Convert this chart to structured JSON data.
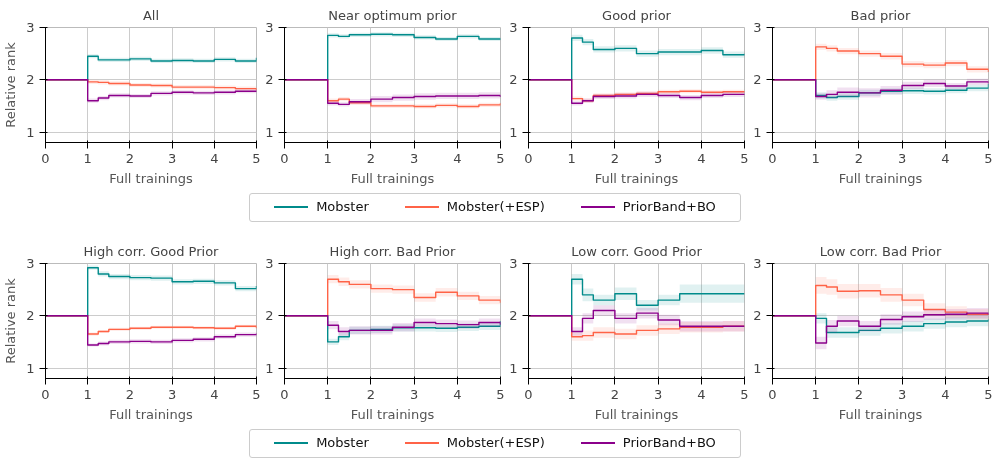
{
  "chart_data": [
    {
      "type": "step",
      "title": "All",
      "xlabel": "Full trainings",
      "ylabel": "Relative rank",
      "xlim": [
        0,
        5
      ],
      "xticks": [
        0,
        1,
        2,
        3,
        4,
        5
      ],
      "ylim": [
        0.8,
        3
      ],
      "yticks": [
        1,
        2,
        3
      ],
      "grid": true,
      "x": [
        0,
        1,
        1.25,
        1.5,
        2,
        2.5,
        3,
        3.5,
        4,
        4.5,
        5
      ],
      "series": [
        {
          "color": "#008b8b",
          "values": [
            2,
            2.45,
            2.38,
            2.38,
            2.4,
            2.36,
            2.37,
            2.36,
            2.39,
            2.36,
            2.42
          ],
          "lower": [
            2,
            2.41,
            2.34,
            2.34,
            2.36,
            2.32,
            2.33,
            2.32,
            2.35,
            2.32,
            2.38
          ],
          "upper": [
            2,
            2.49,
            2.42,
            2.42,
            2.44,
            2.4,
            2.41,
            2.4,
            2.43,
            2.4,
            2.46
          ]
        },
        {
          "color": "#ff6347",
          "values": [
            2,
            1.96,
            1.95,
            1.93,
            1.9,
            1.89,
            1.86,
            1.86,
            1.85,
            1.83,
            1.8
          ],
          "lower": [
            2,
            1.92,
            1.91,
            1.89,
            1.86,
            1.85,
            1.82,
            1.82,
            1.81,
            1.79,
            1.76
          ],
          "upper": [
            2,
            2,
            1.99,
            1.97,
            1.94,
            1.93,
            1.9,
            1.9,
            1.89,
            1.87,
            1.84
          ]
        },
        {
          "color": "#8b008b",
          "values": [
            2,
            1.6,
            1.65,
            1.7,
            1.69,
            1.74,
            1.76,
            1.75,
            1.76,
            1.78,
            1.77
          ],
          "lower": [
            2,
            1.56,
            1.61,
            1.66,
            1.65,
            1.7,
            1.72,
            1.71,
            1.72,
            1.74,
            1.73
          ],
          "upper": [
            2,
            1.64,
            1.69,
            1.74,
            1.73,
            1.78,
            1.8,
            1.79,
            1.8,
            1.82,
            1.81
          ]
        }
      ]
    },
    {
      "type": "step",
      "title": "Near optimum prior",
      "xlabel": "Full trainings",
      "xlim": [
        0,
        5
      ],
      "xticks": [
        0,
        1,
        2,
        3,
        4,
        5
      ],
      "ylim": [
        0.8,
        3
      ],
      "yticks": [
        1,
        2,
        3
      ],
      "grid": true,
      "legend": "bottom",
      "x": [
        0,
        1,
        1.25,
        1.5,
        2,
        2.5,
        3,
        3.5,
        4,
        4.5,
        5
      ],
      "series": [
        {
          "name": "Mobster",
          "color": "#008b8b",
          "values": [
            2,
            2.85,
            2.83,
            2.86,
            2.87,
            2.86,
            2.81,
            2.78,
            2.83,
            2.78,
            2.79
          ],
          "lower": [
            2,
            2.81,
            2.79,
            2.82,
            2.83,
            2.82,
            2.77,
            2.74,
            2.79,
            2.74,
            2.75
          ],
          "upper": [
            2,
            2.89,
            2.87,
            2.9,
            2.91,
            2.9,
            2.85,
            2.82,
            2.87,
            2.82,
            2.83
          ]
        },
        {
          "name": "Mobster(+ESP)",
          "color": "#ff6347",
          "values": [
            2,
            1.6,
            1.63,
            1.56,
            1.5,
            1.5,
            1.49,
            1.51,
            1.49,
            1.52,
            1.55
          ],
          "lower": [
            2,
            1.56,
            1.59,
            1.52,
            1.46,
            1.46,
            1.45,
            1.47,
            1.45,
            1.48,
            1.51
          ],
          "upper": [
            2,
            1.64,
            1.67,
            1.6,
            1.54,
            1.54,
            1.53,
            1.55,
            1.53,
            1.56,
            1.59
          ]
        },
        {
          "name": "PriorBand+BO",
          "color": "#8b008b",
          "values": [
            2,
            1.55,
            1.53,
            1.58,
            1.63,
            1.66,
            1.68,
            1.69,
            1.69,
            1.7,
            1.67
          ],
          "lower": [
            2,
            1.51,
            1.49,
            1.53,
            1.57,
            1.6,
            1.62,
            1.63,
            1.63,
            1.64,
            1.61
          ],
          "upper": [
            2,
            1.59,
            1.57,
            1.63,
            1.69,
            1.72,
            1.74,
            1.75,
            1.75,
            1.76,
            1.73
          ]
        }
      ]
    },
    {
      "type": "step",
      "title": "Good prior",
      "xlabel": "Full trainings",
      "xlim": [
        0,
        5
      ],
      "xticks": [
        0,
        1,
        2,
        3,
        4,
        5
      ],
      "ylim": [
        0.8,
        3
      ],
      "yticks": [
        1,
        2,
        3
      ],
      "grid": true,
      "x": [
        0,
        1,
        1.25,
        1.5,
        2,
        2.5,
        3,
        3.5,
        4,
        4.5,
        5
      ],
      "series": [
        {
          "color": "#008b8b",
          "values": [
            2,
            2.8,
            2.72,
            2.58,
            2.6,
            2.5,
            2.53,
            2.53,
            2.56,
            2.48,
            2.5
          ],
          "lower": [
            2,
            2.74,
            2.66,
            2.52,
            2.54,
            2.44,
            2.47,
            2.47,
            2.5,
            2.42,
            2.44
          ],
          "upper": [
            2,
            2.86,
            2.78,
            2.64,
            2.66,
            2.56,
            2.59,
            2.59,
            2.62,
            2.54,
            2.56
          ]
        },
        {
          "color": "#ff6347",
          "values": [
            2,
            1.64,
            1.6,
            1.7,
            1.72,
            1.74,
            1.77,
            1.78,
            1.76,
            1.77,
            1.76
          ],
          "lower": [
            2,
            1.6,
            1.56,
            1.66,
            1.68,
            1.7,
            1.73,
            1.74,
            1.72,
            1.73,
            1.72
          ],
          "upper": [
            2,
            1.68,
            1.64,
            1.74,
            1.76,
            1.78,
            1.81,
            1.82,
            1.8,
            1.81,
            1.8
          ]
        },
        {
          "color": "#8b008b",
          "values": [
            2,
            1.55,
            1.6,
            1.68,
            1.69,
            1.72,
            1.7,
            1.66,
            1.7,
            1.72,
            1.73
          ],
          "lower": [
            2,
            1.51,
            1.56,
            1.63,
            1.64,
            1.67,
            1.65,
            1.61,
            1.65,
            1.67,
            1.68
          ],
          "upper": [
            2,
            1.59,
            1.64,
            1.73,
            1.74,
            1.77,
            1.75,
            1.71,
            1.75,
            1.77,
            1.78
          ]
        }
      ]
    },
    {
      "type": "step",
      "title": "Bad prior",
      "xlabel": "Full trainings",
      "xlim": [
        0,
        5
      ],
      "xticks": [
        0,
        1,
        2,
        3,
        4,
        5
      ],
      "ylim": [
        0.8,
        3
      ],
      "yticks": [
        1,
        2,
        3
      ],
      "grid": true,
      "x": [
        0,
        1,
        1.25,
        1.5,
        2,
        2.5,
        3,
        3.5,
        4,
        4.5,
        5
      ],
      "series": [
        {
          "color": "#008b8b",
          "values": [
            2,
            1.7,
            1.66,
            1.68,
            1.75,
            1.78,
            1.79,
            1.78,
            1.8,
            1.84,
            1.92
          ],
          "lower": [
            2,
            1.64,
            1.6,
            1.62,
            1.69,
            1.72,
            1.73,
            1.72,
            1.74,
            1.78,
            1.86
          ],
          "upper": [
            2,
            1.76,
            1.72,
            1.74,
            1.81,
            1.84,
            1.85,
            1.84,
            1.86,
            1.9,
            1.98
          ]
        },
        {
          "color": "#ff6347",
          "values": [
            2,
            2.63,
            2.6,
            2.55,
            2.5,
            2.45,
            2.3,
            2.28,
            2.32,
            2.2,
            2.15
          ],
          "lower": [
            2,
            2.57,
            2.54,
            2.49,
            2.44,
            2.39,
            2.24,
            2.22,
            2.26,
            2.14,
            2.09
          ],
          "upper": [
            2,
            2.69,
            2.66,
            2.61,
            2.56,
            2.51,
            2.36,
            2.34,
            2.38,
            2.26,
            2.21
          ]
        },
        {
          "color": "#8b008b",
          "values": [
            2,
            1.68,
            1.72,
            1.76,
            1.75,
            1.8,
            1.89,
            1.93,
            1.88,
            1.96,
            1.93
          ],
          "lower": [
            2,
            1.62,
            1.64,
            1.67,
            1.66,
            1.72,
            1.82,
            1.86,
            1.82,
            1.9,
            1.87
          ],
          "upper": [
            2,
            1.74,
            1.8,
            1.85,
            1.84,
            1.88,
            1.96,
            2,
            1.94,
            2.02,
            1.99
          ]
        }
      ]
    },
    {
      "type": "step",
      "title": "High corr. Good Prior",
      "xlabel": "Full trainings",
      "ylabel": "Relative rank",
      "xlim": [
        0,
        5
      ],
      "xticks": [
        0,
        1,
        2,
        3,
        4,
        5
      ],
      "ylim": [
        0.8,
        3
      ],
      "yticks": [
        1,
        2,
        3
      ],
      "grid": true,
      "x": [
        0,
        1,
        1.25,
        1.5,
        2,
        2.5,
        3,
        3.5,
        4,
        4.5,
        5
      ],
      "series": [
        {
          "color": "#008b8b",
          "values": [
            2,
            2.92,
            2.8,
            2.75,
            2.73,
            2.72,
            2.65,
            2.66,
            2.63,
            2.52,
            2.57
          ],
          "lower": [
            2,
            2.88,
            2.75,
            2.7,
            2.68,
            2.67,
            2.6,
            2.61,
            2.58,
            2.47,
            2.52
          ],
          "upper": [
            2,
            2.96,
            2.85,
            2.8,
            2.78,
            2.77,
            2.7,
            2.71,
            2.68,
            2.57,
            2.62
          ]
        },
        {
          "color": "#ff6347",
          "values": [
            2,
            1.65,
            1.7,
            1.74,
            1.76,
            1.78,
            1.78,
            1.77,
            1.76,
            1.8,
            1.76
          ],
          "lower": [
            2,
            1.62,
            1.67,
            1.71,
            1.73,
            1.75,
            1.75,
            1.74,
            1.73,
            1.77,
            1.73
          ],
          "upper": [
            2,
            1.68,
            1.73,
            1.77,
            1.79,
            1.81,
            1.81,
            1.8,
            1.79,
            1.83,
            1.79
          ]
        },
        {
          "color": "#8b008b",
          "values": [
            2,
            1.44,
            1.47,
            1.5,
            1.51,
            1.5,
            1.53,
            1.55,
            1.6,
            1.64,
            1.66
          ],
          "lower": [
            2,
            1.41,
            1.43,
            1.46,
            1.47,
            1.46,
            1.49,
            1.51,
            1.56,
            1.6,
            1.62
          ],
          "upper": [
            2,
            1.47,
            1.51,
            1.54,
            1.55,
            1.54,
            1.57,
            1.59,
            1.64,
            1.68,
            1.7
          ]
        }
      ]
    },
    {
      "type": "step",
      "title": "High corr. Bad Prior",
      "xlabel": "Full trainings",
      "xlim": [
        0,
        5
      ],
      "xticks": [
        0,
        1,
        2,
        3,
        4,
        5
      ],
      "ylim": [
        0.8,
        3
      ],
      "yticks": [
        1,
        2,
        3
      ],
      "grid": true,
      "legend": "bottom",
      "x": [
        0,
        1,
        1.25,
        1.5,
        2,
        2.5,
        3,
        3.5,
        4,
        4.5,
        5
      ],
      "series": [
        {
          "name": "Mobster",
          "color": "#008b8b",
          "values": [
            2,
            1.5,
            1.6,
            1.72,
            1.74,
            1.77,
            1.77,
            1.76,
            1.78,
            1.8,
            1.9
          ],
          "lower": [
            2,
            1.44,
            1.53,
            1.65,
            1.67,
            1.7,
            1.7,
            1.69,
            1.71,
            1.73,
            1.83
          ],
          "upper": [
            2,
            1.56,
            1.67,
            1.79,
            1.81,
            1.84,
            1.84,
            1.83,
            1.85,
            1.87,
            1.97
          ]
        },
        {
          "name": "Mobster(+ESP)",
          "color": "#ff6347",
          "values": [
            2,
            2.7,
            2.65,
            2.6,
            2.52,
            2.5,
            2.35,
            2.45,
            2.38,
            2.3,
            2.25
          ],
          "lower": [
            2,
            2.62,
            2.57,
            2.52,
            2.44,
            2.42,
            2.27,
            2.37,
            2.3,
            2.22,
            2.18
          ],
          "upper": [
            2,
            2.78,
            2.73,
            2.68,
            2.6,
            2.58,
            2.43,
            2.53,
            2.46,
            2.38,
            2.32
          ]
        },
        {
          "name": "PriorBand+BO",
          "color": "#8b008b",
          "values": [
            2,
            1.82,
            1.7,
            1.72,
            1.72,
            1.78,
            1.87,
            1.85,
            1.83,
            1.87,
            1.83
          ],
          "lower": [
            2,
            1.74,
            1.62,
            1.64,
            1.64,
            1.7,
            1.79,
            1.77,
            1.75,
            1.79,
            1.75
          ],
          "upper": [
            2,
            1.9,
            1.78,
            1.8,
            1.8,
            1.86,
            1.95,
            1.93,
            1.91,
            1.95,
            1.91
          ]
        }
      ]
    },
    {
      "type": "step",
      "title": "Low corr. Good Prior",
      "xlabel": "Full trainings",
      "xlim": [
        0,
        5
      ],
      "xticks": [
        0,
        1,
        2,
        3,
        4,
        5
      ],
      "ylim": [
        0.8,
        3
      ],
      "yticks": [
        1,
        2,
        3
      ],
      "grid": true,
      "x": [
        0,
        1,
        1.25,
        1.5,
        2,
        2.5,
        3,
        3.5,
        4,
        4.5,
        5
      ],
      "series": [
        {
          "color": "#008b8b",
          "values": [
            2,
            2.7,
            2.4,
            2.3,
            2.42,
            2.2,
            2.3,
            2.42,
            2.42,
            2.42,
            2.42
          ],
          "lower": [
            2,
            2.6,
            2.28,
            2.2,
            2.3,
            2.1,
            2.2,
            2.25,
            2.25,
            2.25,
            2.25
          ],
          "upper": [
            2,
            2.8,
            2.52,
            2.4,
            2.54,
            2.3,
            2.4,
            2.6,
            2.6,
            2.6,
            2.6
          ]
        },
        {
          "color": "#ff6347",
          "values": [
            2,
            1.6,
            1.62,
            1.68,
            1.65,
            1.72,
            1.75,
            1.78,
            1.78,
            1.8,
            1.8
          ],
          "lower": [
            2,
            1.52,
            1.52,
            1.58,
            1.55,
            1.62,
            1.65,
            1.68,
            1.68,
            1.7,
            1.7
          ],
          "upper": [
            2,
            1.68,
            1.72,
            1.78,
            1.75,
            1.82,
            1.85,
            1.88,
            1.88,
            1.9,
            1.9
          ]
        },
        {
          "color": "#8b008b",
          "values": [
            2,
            1.7,
            1.95,
            2.1,
            1.95,
            2.05,
            1.92,
            1.8,
            1.8,
            1.8,
            1.8
          ],
          "lower": [
            2,
            1.62,
            1.85,
            2,
            1.85,
            1.95,
            1.82,
            1.7,
            1.7,
            1.7,
            1.7
          ],
          "upper": [
            2,
            1.78,
            2.05,
            2.2,
            2.05,
            2.15,
            2.02,
            1.9,
            1.9,
            1.9,
            1.9
          ]
        }
      ]
    },
    {
      "type": "step",
      "title": "Low corr. Bad Prior",
      "xlabel": "Full trainings",
      "xlim": [
        0,
        5
      ],
      "xticks": [
        0,
        1,
        2,
        3,
        4,
        5
      ],
      "ylim": [
        0.8,
        3
      ],
      "yticks": [
        1,
        2,
        3
      ],
      "grid": true,
      "x": [
        0,
        1,
        1.25,
        1.5,
        2,
        2.5,
        3,
        3.5,
        4,
        4.5,
        5
      ],
      "series": [
        {
          "color": "#008b8b",
          "values": [
            2,
            1.95,
            1.68,
            1.68,
            1.72,
            1.76,
            1.8,
            1.85,
            1.88,
            1.9,
            1.93
          ],
          "lower": [
            2,
            1.85,
            1.58,
            1.58,
            1.62,
            1.66,
            1.7,
            1.75,
            1.78,
            1.8,
            1.83
          ],
          "upper": [
            2,
            2.05,
            1.78,
            1.78,
            1.82,
            1.86,
            1.9,
            1.95,
            1.98,
            2,
            2.03
          ]
        },
        {
          "color": "#ff6347",
          "values": [
            2,
            2.58,
            2.55,
            2.47,
            2.48,
            2.4,
            2.3,
            2.12,
            2.07,
            2.03,
            2.02
          ],
          "lower": [
            2,
            2.42,
            2.4,
            2.33,
            2.35,
            2.27,
            2.18,
            2,
            1.96,
            1.93,
            1.92
          ],
          "upper": [
            2,
            2.74,
            2.7,
            2.61,
            2.61,
            2.53,
            2.42,
            2.24,
            2.18,
            2.13,
            2.12
          ]
        },
        {
          "color": "#8b008b",
          "values": [
            2,
            1.48,
            1.8,
            1.9,
            1.8,
            1.93,
            1.98,
            2.02,
            2.03,
            2.05,
            2.02
          ],
          "lower": [
            2,
            1.36,
            1.68,
            1.8,
            1.7,
            1.83,
            1.88,
            1.92,
            1.93,
            1.95,
            1.92
          ],
          "upper": [
            2,
            1.6,
            1.92,
            2,
            1.9,
            2.03,
            2.08,
            2.12,
            2.13,
            2.15,
            2.12
          ]
        }
      ]
    }
  ]
}
